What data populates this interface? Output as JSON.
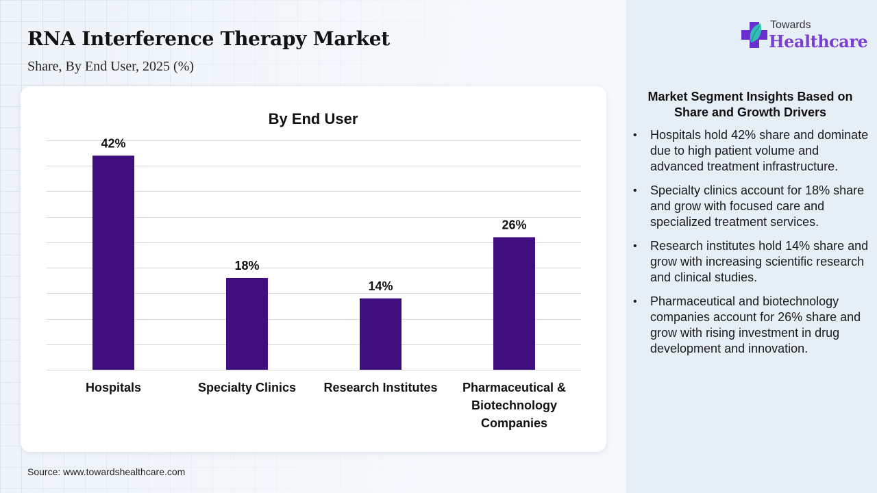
{
  "header": {
    "title": "RNA Interference Therapy Market",
    "subtitle": "Share, By End User, 2025 (%)"
  },
  "logo": {
    "line1": "Towards",
    "line2": "Healthcare",
    "colors": {
      "cross": "#6a2fd0",
      "leaf": "#2ec4b6",
      "wordmark": "#7b3fd1"
    }
  },
  "chart_data": {
    "type": "bar",
    "title": "By End User",
    "categories": [
      "Hospitals",
      "Specialty Clinics",
      "Research Institutes",
      "Pharmaceutical & Biotechnology Companies"
    ],
    "category_lines": [
      [
        "Hospitals"
      ],
      [
        "Specialty Clinics"
      ],
      [
        "Research Institutes"
      ],
      [
        "Pharmaceutical &",
        "Biotechnology",
        "Companies"
      ]
    ],
    "values": [
      42,
      18,
      14,
      26
    ],
    "data_labels": [
      "42%",
      "18%",
      "14%",
      "26%"
    ],
    "unit": "%",
    "xlabel": "",
    "ylabel": "",
    "ylim": [
      0,
      45
    ],
    "ytick_step": 5,
    "y_axis_labels_shown": false,
    "grid": true,
    "bar_color": "#3f0f7f",
    "legend": "none"
  },
  "insights": {
    "title": "Market Segment Insights Based on Share and Growth Drivers",
    "bullets": [
      "Hospitals hold 42% share and dominate due to high patient volume and advanced treatment infrastructure.",
      "Specialty clinics account for 18% share and grow with focused care and specialized treatment services.",
      "Research institutes hold 14% share and grow with increasing scientific research and clinical studies.",
      "Pharmaceutical and biotechnology companies account for 26% share and grow with rising investment in drug development and innovation."
    ]
  },
  "footer": {
    "source": "Source: www.towardshealthcare.com"
  }
}
